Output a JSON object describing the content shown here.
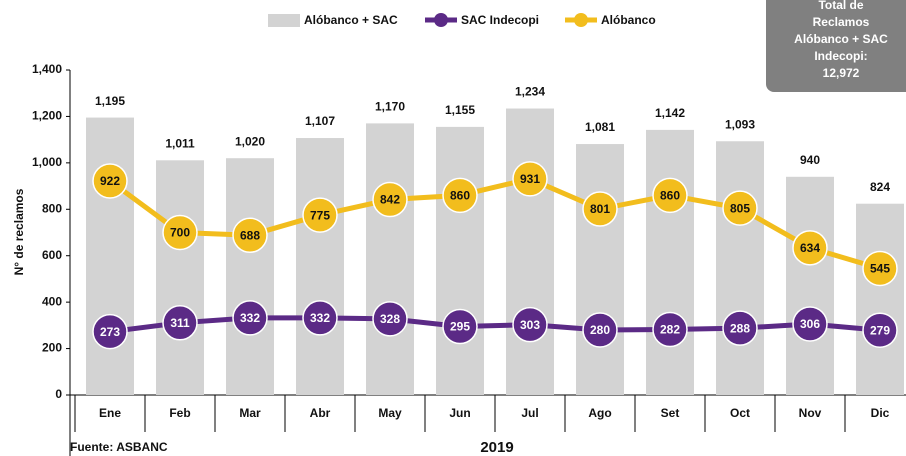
{
  "chart_data": {
    "type": "bar_line",
    "ylabel": "N° de reclamos",
    "xlabel": "2019",
    "source": "Fuente: ASBANC",
    "annotation": [
      "Total de",
      "Reclamos",
      "Alóbanco + SAC",
      "Indecopi:",
      "12,972"
    ],
    "categories": [
      "Ene",
      "Feb",
      "Mar",
      "Abr",
      "May",
      "Jun",
      "Jul",
      "Ago",
      "Set",
      "Oct",
      "Nov",
      "Dic"
    ],
    "ylim": [
      0,
      1400
    ],
    "yticks": [
      0,
      200,
      400,
      600,
      800,
      {
        "value": 1000,
        "label": "1,000"
      },
      {
        "value": 1200,
        "label": "1,200"
      },
      {
        "value": 1400,
        "label": "1,400"
      }
    ],
    "series": [
      {
        "name": "Alóbanco + SAC",
        "type": "bar",
        "color": "#d3d3d3",
        "values": [
          1195,
          1011,
          1020,
          1107,
          1170,
          1155,
          1234,
          1081,
          1142,
          1093,
          940,
          824
        ],
        "value_labels": [
          "1,195",
          "1,011",
          "1,020",
          "1,107",
          "1,170",
          "1,155",
          "1,234",
          "1,081",
          "1,142",
          "1,093",
          "940",
          "824"
        ]
      },
      {
        "name": "SAC Indecopi",
        "type": "line",
        "color": "#5b2a86",
        "values": [
          273,
          311,
          332,
          332,
          328,
          295,
          303,
          280,
          282,
          288,
          306,
          279
        ]
      },
      {
        "name": "Alóbanco",
        "type": "line",
        "color": "#f2bd1d",
        "values": [
          922,
          700,
          688,
          775,
          842,
          860,
          931,
          801,
          860,
          805,
          634,
          545
        ]
      }
    ]
  }
}
